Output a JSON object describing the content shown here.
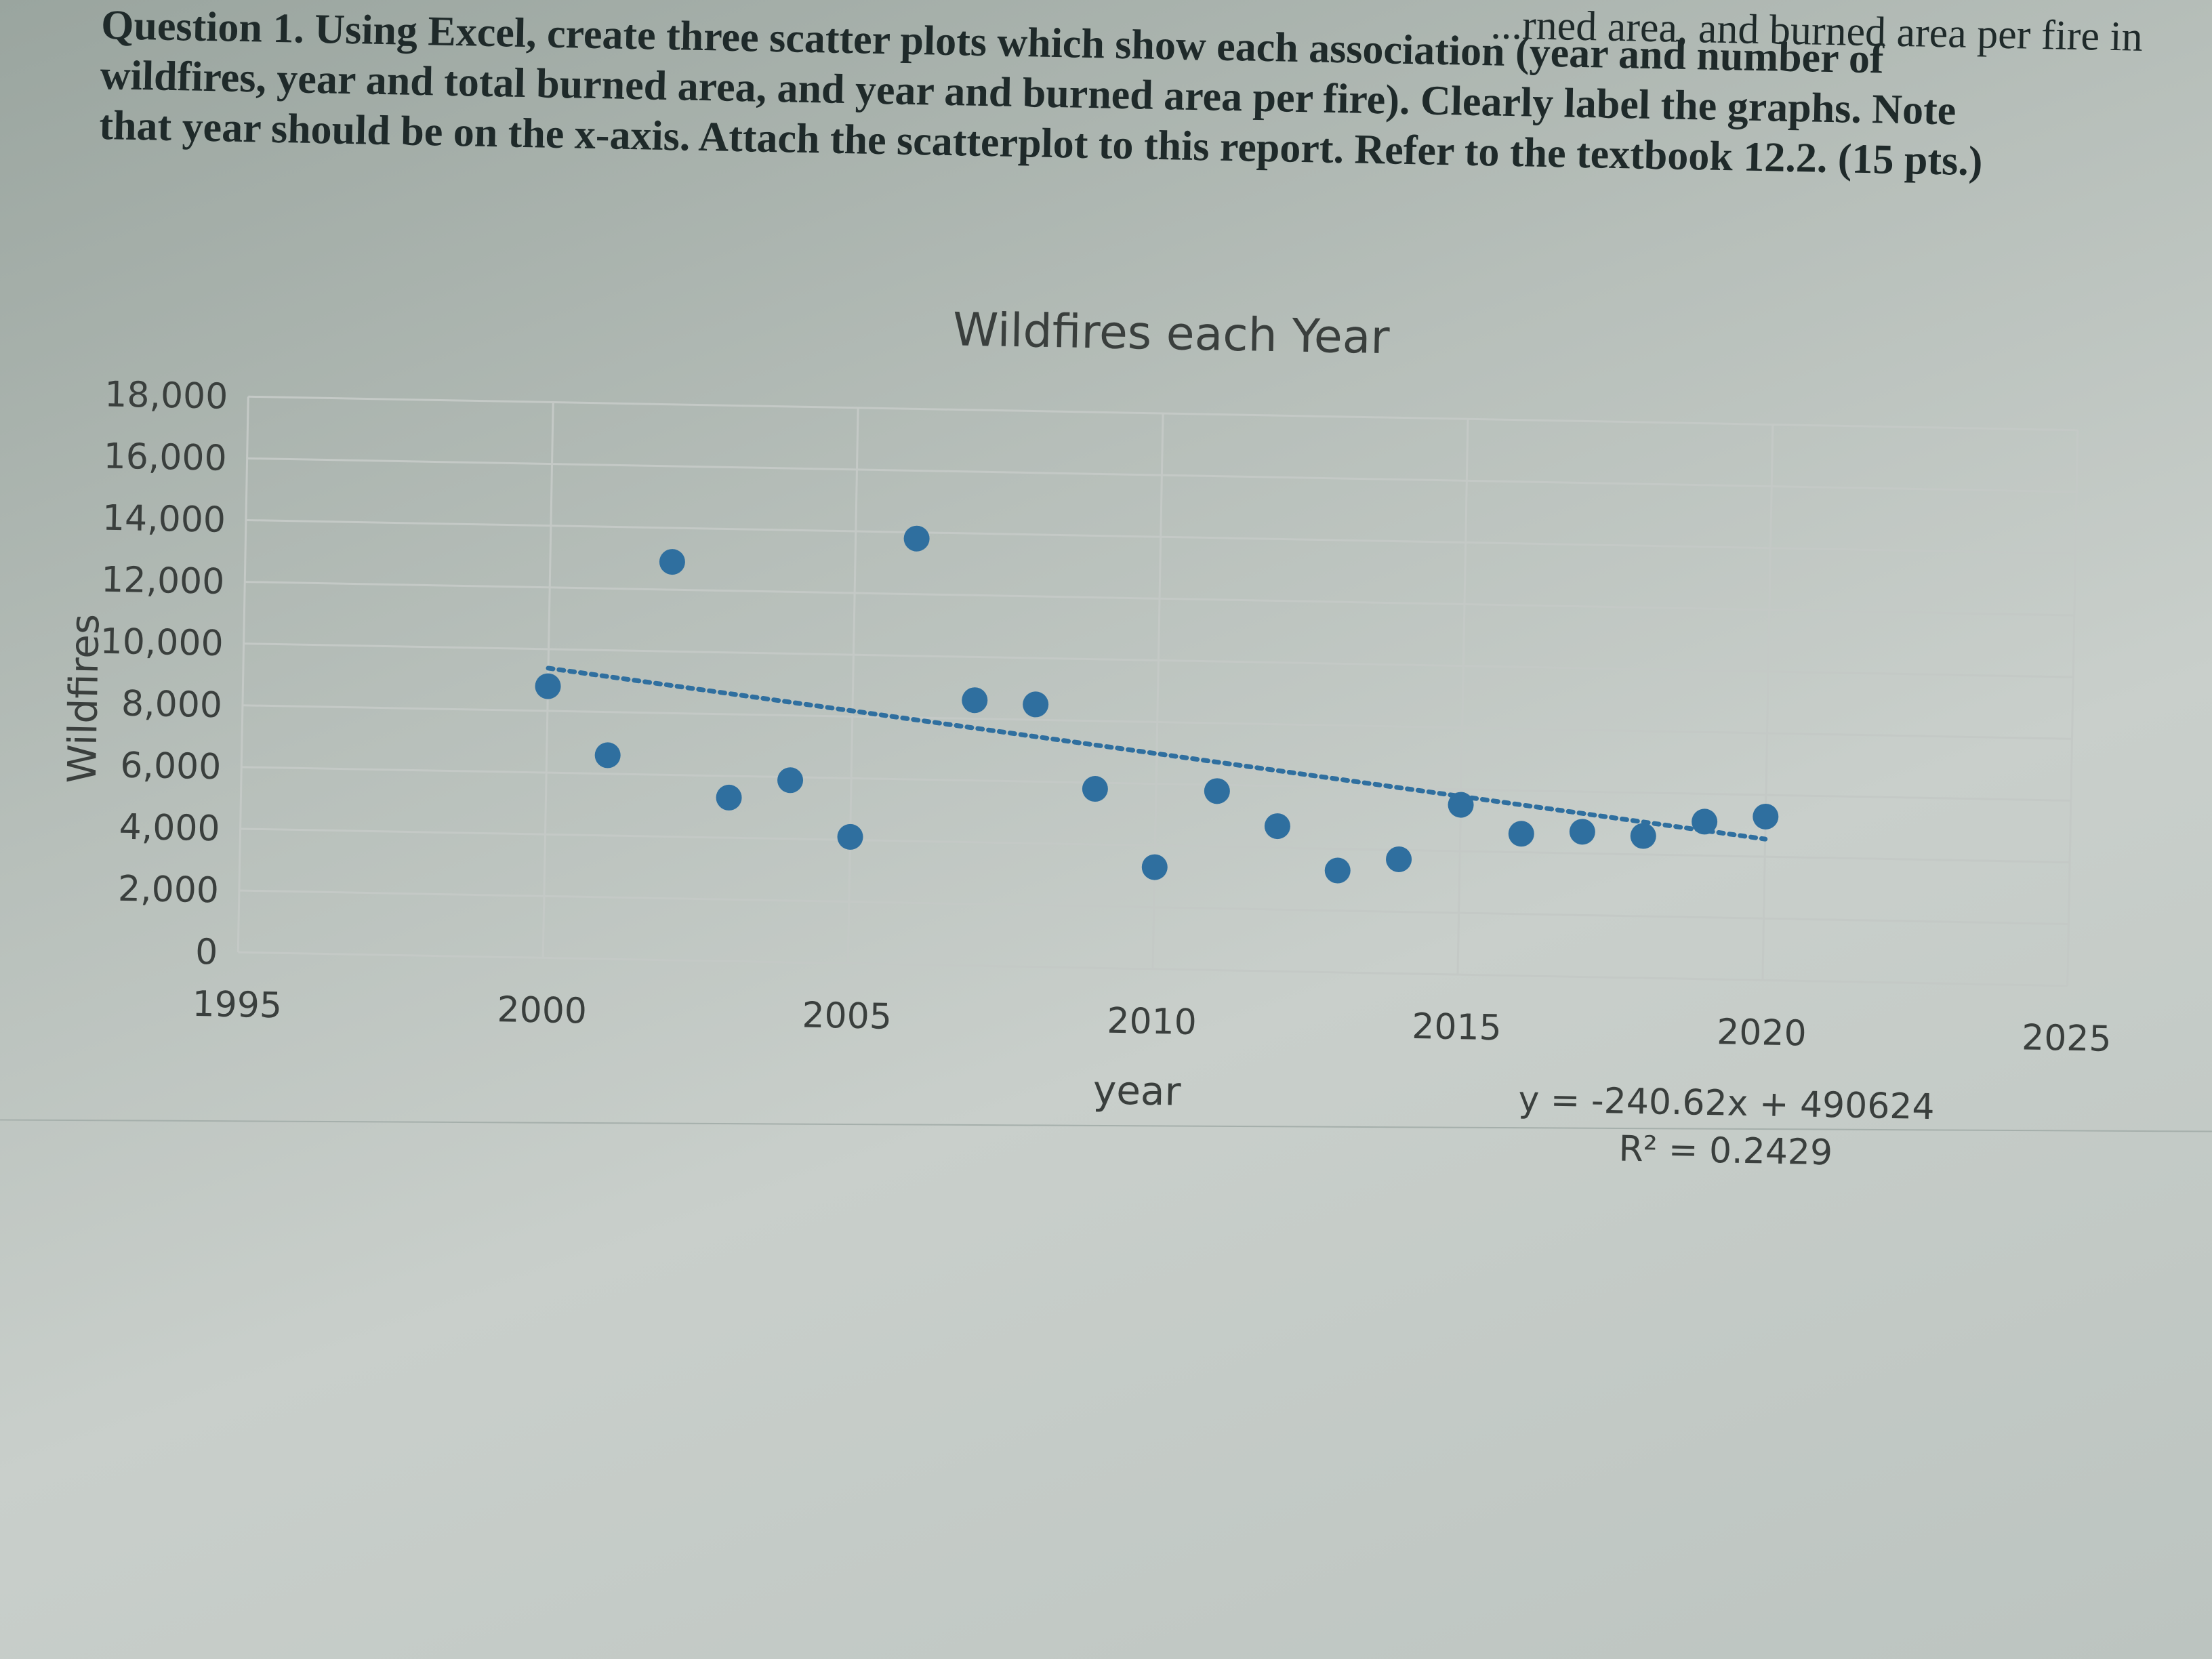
{
  "question": {
    "lines": [
      "Question 1. Using Excel, create three scatter plots which show each association (year and number of",
      "wildfires, year and total burned area, and year and burned area per fire). Clearly label the graphs. Note",
      "that year should be on the x-axis. Attach the scatterplot to this report. Refer to the textbook 12.2. (15 pts.)"
    ],
    "top_fragment": "...rned area, and burned area per fire in"
  },
  "chart_data": {
    "type": "scatter",
    "title": "Wildfires each Year",
    "xlabel": "year",
    "ylabel": "Wildfires",
    "xlim": [
      1995,
      2025
    ],
    "ylim": [
      0,
      18000
    ],
    "x_ticks": [
      "1995",
      "2000",
      "2005",
      "2010",
      "2015",
      "2020",
      "2025"
    ],
    "y_ticks": [
      "0",
      "2,000",
      "4,000",
      "6,000",
      "8,000",
      "10,000",
      "12,000",
      "14,000",
      "16,000",
      "18,000"
    ],
    "grid": true,
    "points": [
      {
        "x": 2000,
        "y": 8800
      },
      {
        "x": 2001,
        "y": 6600
      },
      {
        "x": 2002,
        "y": 12900
      },
      {
        "x": 2003,
        "y": 5300
      },
      {
        "x": 2004,
        "y": 5900
      },
      {
        "x": 2005,
        "y": 4100
      },
      {
        "x": 2006,
        "y": 13800
      },
      {
        "x": 2007,
        "y": 8600
      },
      {
        "x": 2008,
        "y": 8500
      },
      {
        "x": 2009,
        "y": 5800
      },
      {
        "x": 2010,
        "y": 3300
      },
      {
        "x": 2011,
        "y": 5800
      },
      {
        "x": 2012,
        "y": 4700
      },
      {
        "x": 2013,
        "y": 3300
      },
      {
        "x": 2014,
        "y": 3700
      },
      {
        "x": 2015,
        "y": 5500
      },
      {
        "x": 2016,
        "y": 4600
      },
      {
        "x": 2017,
        "y": 4700
      },
      {
        "x": 2018,
        "y": 4600
      },
      {
        "x": 2019,
        "y": 5100
      },
      {
        "x": 2020,
        "y": 5300
      }
    ],
    "trendline": {
      "type": "linear",
      "slope": -240.62,
      "intercept": 490624,
      "equation": "y = -240.62x + 490624",
      "r_squared": "R² = 0.2429"
    },
    "colors": {
      "marker": "#2f6f9f",
      "trend": "#2f6f9f",
      "grid": "#c4c9c6",
      "text": "#3a3f3d"
    }
  }
}
